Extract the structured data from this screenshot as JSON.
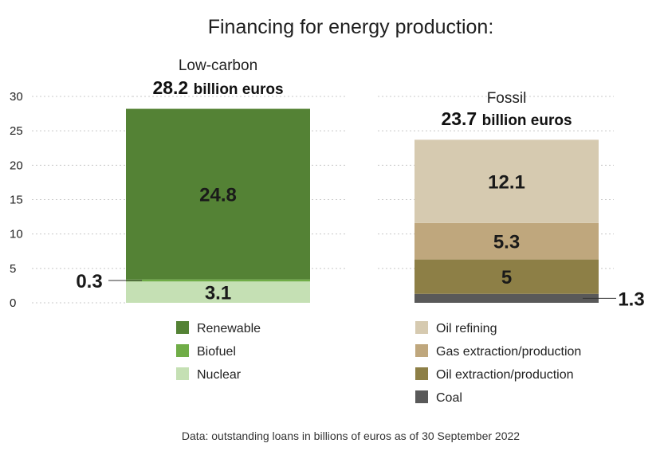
{
  "colors": {
    "renewable": "#548235",
    "biofuel": "#70ad47",
    "nuclear": "#c5e0b4",
    "oil_refining": "#d6cab0",
    "gas": "#bfa77d",
    "oil_extraction": "#8d7f46",
    "coal": "#595959"
  },
  "chart_data": {
    "type": "bar",
    "stacked": true,
    "title": "Financing for energy production:",
    "ylim": [
      0,
      30
    ],
    "yticks": [
      0,
      5,
      10,
      15,
      20,
      25,
      30
    ],
    "grid": true,
    "groups": [
      {
        "name": "Low-carbon",
        "total": "28.2",
        "unit": "billion euros",
        "segments": [
          {
            "name": "Nuclear",
            "value": 3.1,
            "label": "3.1",
            "color_key": "nuclear"
          },
          {
            "name": "Biofuel",
            "value": 0.3,
            "label": "0.3",
            "color_key": "biofuel",
            "outside": "left"
          },
          {
            "name": "Renewable",
            "value": 24.8,
            "label": "24.8",
            "color_key": "renewable"
          }
        ],
        "legend": [
          {
            "name": "Renewable",
            "color_key": "renewable"
          },
          {
            "name": "Biofuel",
            "color_key": "biofuel"
          },
          {
            "name": "Nuclear",
            "color_key": "nuclear"
          }
        ]
      },
      {
        "name": "Fossil",
        "total": "23.7",
        "unit": "billion euros",
        "segments": [
          {
            "name": "Coal",
            "value": 1.3,
            "label": "1.3",
            "color_key": "coal",
            "outside": "right"
          },
          {
            "name": "Oil extraction/production",
            "value": 5,
            "label": "5",
            "color_key": "oil_extraction"
          },
          {
            "name": "Gas extraction/production",
            "value": 5.3,
            "label": "5.3",
            "color_key": "gas"
          },
          {
            "name": "Oil refining",
            "value": 12.1,
            "label": "12.1",
            "color_key": "oil_refining"
          }
        ],
        "legend": [
          {
            "name": "Oil refining",
            "color_key": "oil_refining"
          },
          {
            "name": "Gas extraction/production",
            "color_key": "gas"
          },
          {
            "name": "Oil extraction/production",
            "color_key": "oil_extraction"
          },
          {
            "name": "Coal",
            "color_key": "coal"
          }
        ]
      }
    ],
    "source": "Data: outstanding loans in billions of euros as of 30 September 2022"
  }
}
